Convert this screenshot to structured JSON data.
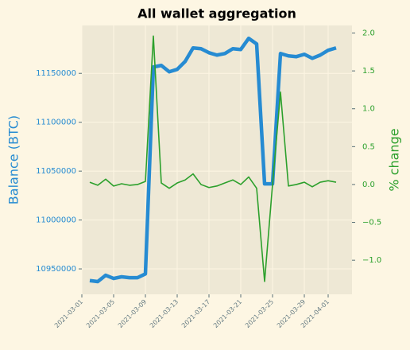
{
  "chart_data": {
    "type": "line",
    "title": "All wallet aggregation",
    "ylabel": "Balance (BTC)",
    "y2label": "% change",
    "x": [
      "2021-03-02",
      "2021-03-03",
      "2021-03-04",
      "2021-03-05",
      "2021-03-06",
      "2021-03-07",
      "2021-03-08",
      "2021-03-09",
      "2021-03-10",
      "2021-03-11",
      "2021-03-12",
      "2021-03-13",
      "2021-03-14",
      "2021-03-15",
      "2021-03-16",
      "2021-03-17",
      "2021-03-18",
      "2021-03-19",
      "2021-03-20",
      "2021-03-21",
      "2021-03-22",
      "2021-03-23",
      "2021-03-24",
      "2021-03-25",
      "2021-03-26",
      "2021-03-27",
      "2021-03-28",
      "2021-03-29",
      "2021-03-30",
      "2021-03-31",
      "2021-04-01",
      "2021-04-02"
    ],
    "series": [
      {
        "name": "Balance (BTC)",
        "color": "#268bd2",
        "axis": "y",
        "values": [
          10938000,
          10937000,
          10943500,
          10940200,
          10941900,
          10941000,
          10941000,
          10944900,
          11156500,
          11158100,
          11151600,
          11154100,
          11162200,
          11176000,
          11175200,
          11171100,
          11168700,
          11170300,
          11175200,
          11174400,
          11185800,
          11180100,
          11037000,
          11037000,
          11170300,
          11167900,
          11167100,
          11169500,
          11165400,
          11168700,
          11173600,
          11176000
        ]
      },
      {
        "name": "% change",
        "color": "#2ca02c",
        "axis": "y2",
        "values": [
          0.03,
          -0.01,
          0.07,
          -0.02,
          0.01,
          -0.01,
          0.0,
          0.04,
          1.96,
          0.02,
          -0.05,
          0.02,
          0.06,
          0.14,
          0.0,
          -0.04,
          -0.02,
          0.02,
          0.06,
          0.0,
          0.1,
          -0.05,
          -1.28,
          0.0,
          1.22,
          -0.02,
          0.0,
          0.03,
          -0.03,
          0.03,
          0.05,
          0.03
        ]
      }
    ],
    "xlim": [
      "2021-03-01",
      "2021-04-04"
    ],
    "xticks": [
      "2021-03-01",
      "2021-03-05",
      "2021-03-09",
      "2021-03-13",
      "2021-03-17",
      "2021-03-21",
      "2021-03-25",
      "2021-03-29",
      "2021-04-01"
    ],
    "ylim": [
      10924000,
      11199000
    ],
    "yticks": [
      10950000,
      11000000,
      11050000,
      11100000,
      11150000
    ],
    "y2lim": [
      -1.45,
      2.1
    ],
    "y2ticks": [
      {
        "value": -1.0,
        "label": "−1.0"
      },
      {
        "value": -0.5,
        "label": "−0.5"
      },
      {
        "value": 0.0,
        "label": "0.0"
      },
      {
        "value": 0.5,
        "label": "0.5"
      },
      {
        "value": 1.0,
        "label": "1.0"
      },
      {
        "value": 1.5,
        "label": "1.5"
      },
      {
        "value": 2.0,
        "label": "2.0"
      }
    ],
    "grid": true
  }
}
